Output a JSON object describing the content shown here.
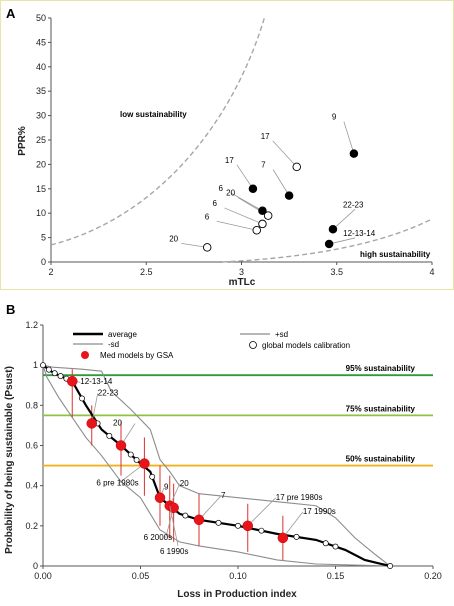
{
  "panel_a": {
    "letter": "A",
    "low_label": "low sustainability",
    "high_label": "high sustainability"
  },
  "panel_b": {
    "letter": "B",
    "legend": {
      "average": "average",
      "minus_sd": "-sd",
      "plus_sd": "+sd",
      "med": "Med models by GSA",
      "global": "global models calibration"
    },
    "thresholds": [
      {
        "label": "95% sustainability",
        "y": 0.95,
        "color": "#2e9b3b"
      },
      {
        "label": "75% sustainability",
        "y": 0.75,
        "color": "#8fc23f"
      },
      {
        "label": "50% sustainability",
        "y": 0.5,
        "color": "#f2b21b"
      }
    ]
  },
  "chart_data": [
    {
      "type": "scatter",
      "panel": "A",
      "xlabel": "mTLc",
      "ylabel": "PPR%",
      "xlim": [
        2,
        4
      ],
      "ylim": [
        0,
        50
      ],
      "xticks": [
        "2",
        "2.5",
        "3",
        "3.5",
        "4"
      ],
      "yticks": [
        "0",
        "5",
        "10",
        "15",
        "20",
        "25",
        "30",
        "35",
        "40",
        "45",
        "50"
      ],
      "grid": false,
      "series": [
        {
          "marker": "filled",
          "points": [
            {
              "x": 3.59,
              "y": 22.2,
              "label": "9"
            },
            {
              "x": 3.25,
              "y": 13.6,
              "label": "7"
            },
            {
              "x": 3.06,
              "y": 15.0,
              "label": "17"
            },
            {
              "x": 3.11,
              "y": 10.5,
              "label": "6"
            },
            {
              "x": 3.48,
              "y": 6.7,
              "label": "22-23"
            },
            {
              "x": 3.46,
              "y": 3.7,
              "label": "12-13-14"
            }
          ]
        },
        {
          "marker": "open",
          "points": [
            {
              "x": 3.29,
              "y": 19.5,
              "label": "17"
            },
            {
              "x": 3.14,
              "y": 9.5,
              "label": "20"
            },
            {
              "x": 3.11,
              "y": 7.8,
              "label": "6"
            },
            {
              "x": 3.08,
              "y": 6.5,
              "label": "6"
            },
            {
              "x": 2.82,
              "y": 3.0,
              "label": "20"
            }
          ]
        }
      ]
    },
    {
      "type": "line",
      "panel": "B",
      "xlabel": "Loss in Production index",
      "ylabel": "Probability of being sustainable (Psust)",
      "xlim": [
        0,
        0.2
      ],
      "ylim": [
        0,
        1.2
      ],
      "xticks": [
        "0.00",
        "0.05",
        "0.10",
        "0.15",
        "0.20"
      ],
      "yticks": [
        "0",
        "0.2",
        "0.4",
        "0.6",
        "0.8",
        "1",
        "1.2"
      ],
      "grid": false,
      "legend_position": "top",
      "average": [
        [
          0,
          1
        ],
        [
          0.004,
          0.97
        ],
        [
          0.008,
          0.95
        ],
        [
          0.015,
          0.92
        ],
        [
          0.022,
          0.8
        ],
        [
          0.03,
          0.68
        ],
        [
          0.04,
          0.6
        ],
        [
          0.05,
          0.51
        ],
        [
          0.055,
          0.47
        ],
        [
          0.06,
          0.34
        ],
        [
          0.065,
          0.3
        ],
        [
          0.07,
          0.26
        ],
        [
          0.08,
          0.23
        ],
        [
          0.1,
          0.2
        ],
        [
          0.12,
          0.16
        ],
        [
          0.14,
          0.13
        ],
        [
          0.155,
          0.08
        ],
        [
          0.165,
          0.03
        ],
        [
          0.178,
          0
        ]
      ],
      "plus_sd": [
        [
          0,
          1
        ],
        [
          0.005,
          0.99
        ],
        [
          0.02,
          0.98
        ],
        [
          0.03,
          0.97
        ],
        [
          0.035,
          0.87
        ],
        [
          0.045,
          0.78
        ],
        [
          0.055,
          0.68
        ],
        [
          0.06,
          0.53
        ],
        [
          0.065,
          0.47
        ],
        [
          0.07,
          0.4
        ],
        [
          0.08,
          0.36
        ],
        [
          0.1,
          0.34
        ],
        [
          0.12,
          0.32
        ],
        [
          0.14,
          0.3
        ],
        [
          0.15,
          0.24
        ],
        [
          0.16,
          0.14
        ],
        [
          0.17,
          0.06
        ],
        [
          0.178,
          0
        ]
      ],
      "minus_sd": [
        [
          0,
          1
        ],
        [
          0.002,
          0.94
        ],
        [
          0.008,
          0.84
        ],
        [
          0.015,
          0.74
        ],
        [
          0.022,
          0.64
        ],
        [
          0.03,
          0.55
        ],
        [
          0.04,
          0.42
        ],
        [
          0.05,
          0.34
        ],
        [
          0.055,
          0.26
        ],
        [
          0.06,
          0.18
        ],
        [
          0.07,
          0.12
        ],
        [
          0.08,
          0.1
        ],
        [
          0.1,
          0.07
        ],
        [
          0.12,
          0.03
        ],
        [
          0.14,
          0.01
        ],
        [
          0.178,
          0
        ]
      ],
      "med_models": [
        {
          "x": 0.015,
          "y": 0.92,
          "label": "12-13-14"
        },
        {
          "x": 0.025,
          "y": 0.71,
          "label": "22-23"
        },
        {
          "x": 0.04,
          "y": 0.6,
          "label": "20"
        },
        {
          "x": 0.052,
          "y": 0.51,
          "label": "6 pre 1980s"
        },
        {
          "x": 0.06,
          "y": 0.34,
          "label": "9"
        },
        {
          "x": 0.065,
          "y": 0.3,
          "label": "20"
        },
        {
          "x": 0.067,
          "y": 0.29,
          "label": "6 2000s"
        },
        {
          "x": 0.08,
          "y": 0.23,
          "label": "7"
        },
        {
          "x": 0.105,
          "y": 0.2,
          "label": "17 pre 1980s"
        },
        {
          "x": 0.123,
          "y": 0.14,
          "label": "17 1990s"
        }
      ],
      "extra_labels": [
        "6 1990s"
      ],
      "error_bars": [
        {
          "x": 0.015,
          "lo": 0.74,
          "hi": 0.98
        },
        {
          "x": 0.025,
          "lo": 0.6,
          "hi": 0.8
        },
        {
          "x": 0.04,
          "lo": 0.45,
          "hi": 0.72
        },
        {
          "x": 0.052,
          "lo": 0.35,
          "hi": 0.64
        },
        {
          "x": 0.06,
          "lo": 0.2,
          "hi": 0.5
        },
        {
          "x": 0.065,
          "lo": 0.14,
          "hi": 0.45
        },
        {
          "x": 0.067,
          "lo": 0.12,
          "hi": 0.41
        },
        {
          "x": 0.08,
          "lo": 0.1,
          "hi": 0.36
        },
        {
          "x": 0.105,
          "lo": 0.07,
          "hi": 0.31
        },
        {
          "x": 0.123,
          "lo": 0.03,
          "hi": 0.25
        }
      ]
    }
  ]
}
